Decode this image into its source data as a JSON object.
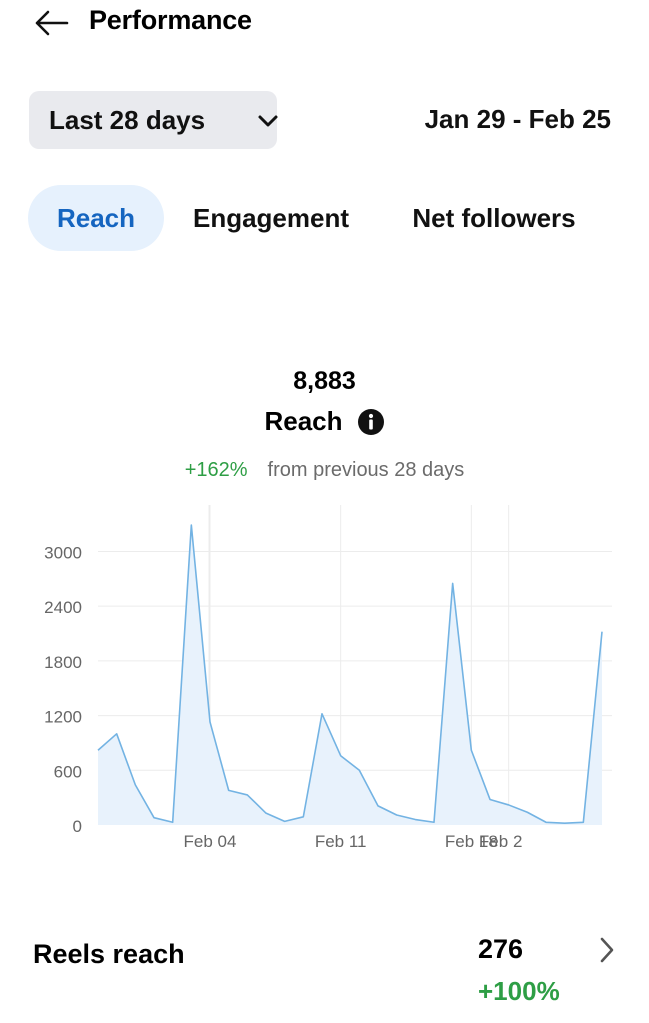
{
  "header": {
    "title": "Performance",
    "back_icon": "arrow-left-icon"
  },
  "filters": {
    "range_label": "Last 28 days",
    "range_icon": "chevron-down-icon",
    "date_range": "Jan 29 - Feb 25"
  },
  "tabs": [
    {
      "label": "Reach",
      "active": true
    },
    {
      "label": "Engagement",
      "active": false
    },
    {
      "label": "Net followers",
      "active": false
    }
  ],
  "summary": {
    "value": "8,883",
    "label": "Reach",
    "info_icon": "info-icon",
    "change_pct": "+162%",
    "change_text": "from previous 28 days"
  },
  "chart_data": {
    "type": "area",
    "x": [
      "Jan 29",
      "Jan 30",
      "Jan 31",
      "Feb 01",
      "Feb 02",
      "Feb 03",
      "Feb 04",
      "Feb 05",
      "Feb 06",
      "Feb 07",
      "Feb 08",
      "Feb 09",
      "Feb 10",
      "Feb 11",
      "Feb 12",
      "Feb 13",
      "Feb 14",
      "Feb 15",
      "Feb 16",
      "Feb 17",
      "Feb 18",
      "Feb 19",
      "Feb 20",
      "Feb 21",
      "Feb 22",
      "Feb 23",
      "Feb 24",
      "Feb 25"
    ],
    "values": [
      820,
      1000,
      440,
      80,
      30,
      3290,
      1130,
      380,
      330,
      130,
      40,
      90,
      1220,
      760,
      600,
      210,
      110,
      60,
      30,
      2650,
      820,
      280,
      220,
      140,
      30,
      20,
      30,
      2120
    ],
    "xtick_labels": [
      "Feb 04",
      "Feb 11",
      "Feb 18",
      "Feb 2"
    ],
    "ytick_labels": [
      "0",
      "600",
      "1200",
      "1800",
      "2400",
      "3000"
    ],
    "ylim": [
      0,
      3400
    ],
    "grid": true,
    "line_color": "#73b3e3",
    "fill_color": "#e8f2fc"
  },
  "reels": {
    "label": "Reels reach",
    "value": "276",
    "change": "+100%",
    "chevron_icon": "chevron-right-icon"
  }
}
